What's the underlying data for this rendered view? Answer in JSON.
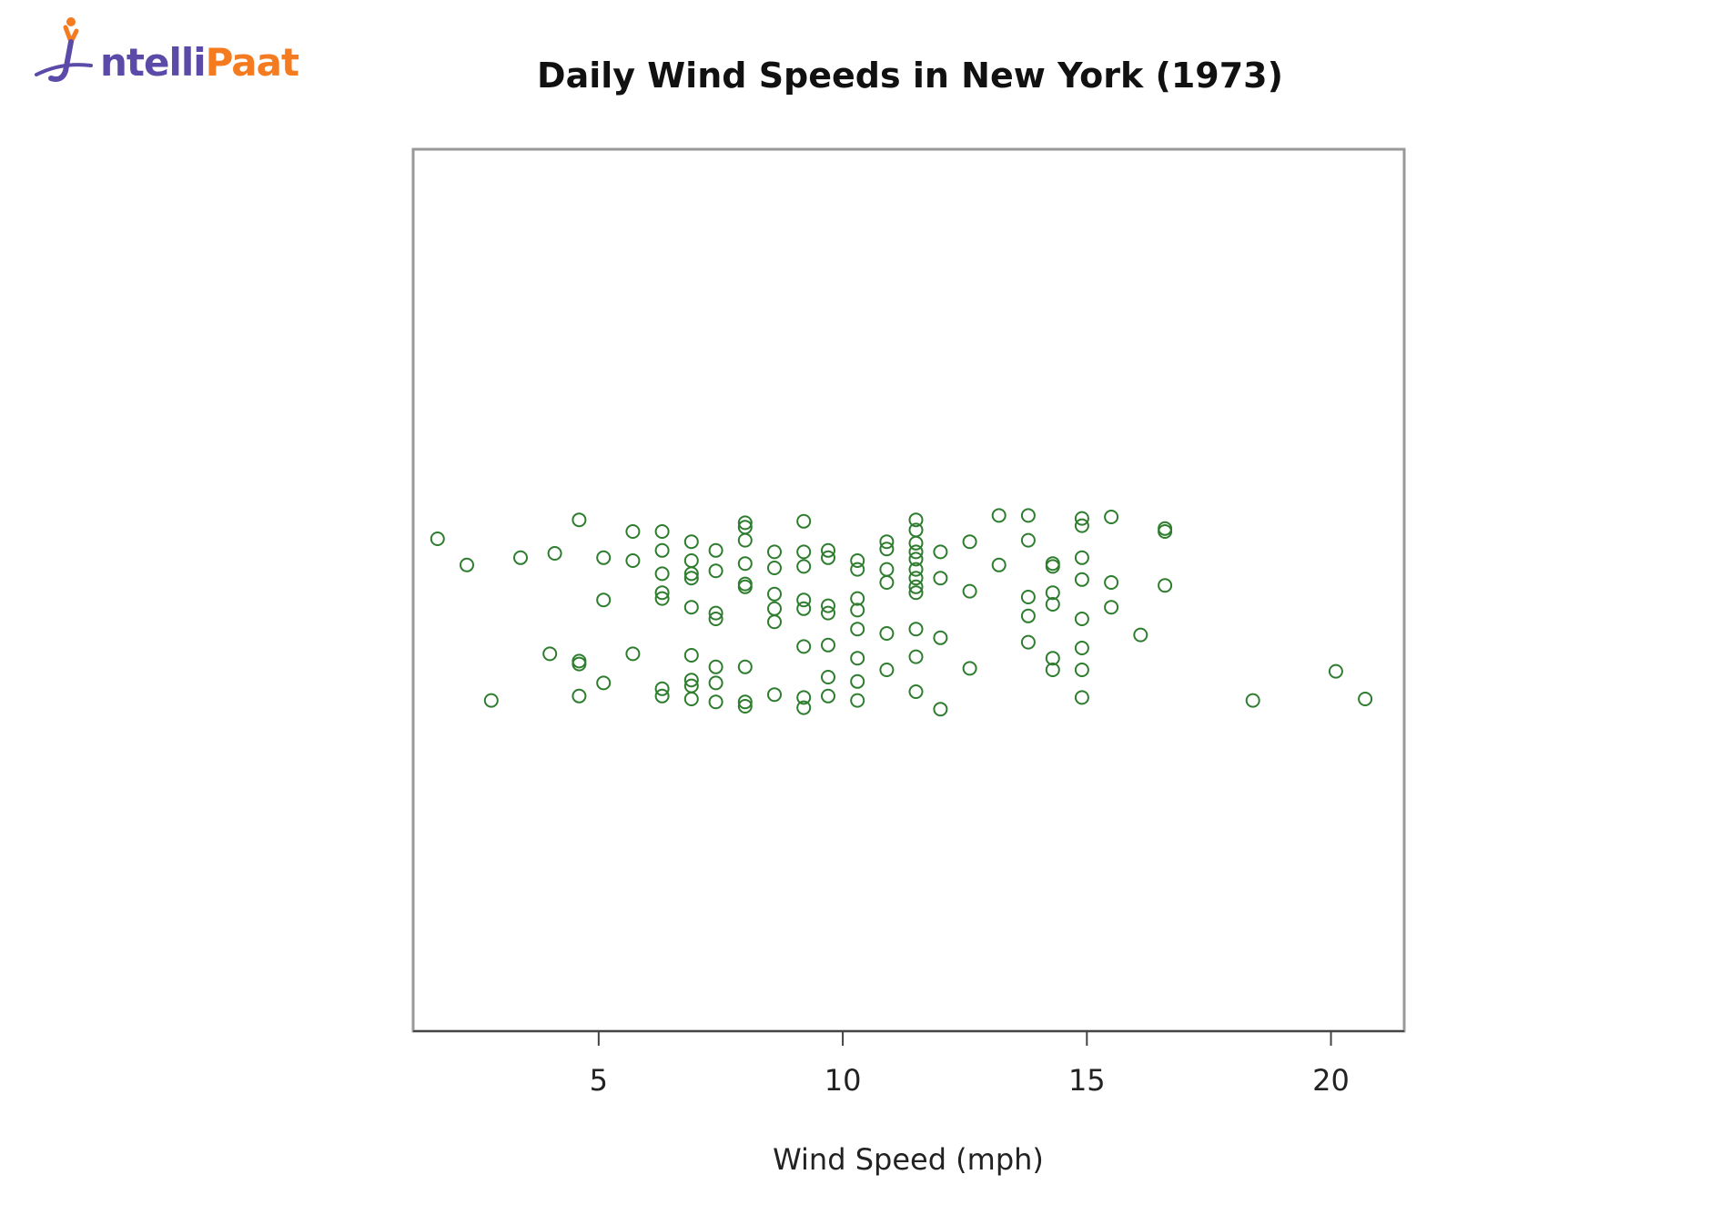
{
  "logo": {
    "part1": "ntelli",
    "part2": "Paat"
  },
  "chart_data": {
    "type": "scatter",
    "title": "Daily Wind Speeds in New York (1973)",
    "xlabel": "Wind Speed (mph)",
    "ylabel": "",
    "xlim": [
      1.2,
      21.5
    ],
    "xticks": [
      5,
      10,
      15,
      20
    ],
    "xtick_labels": [
      "5",
      "10",
      "15",
      "20"
    ],
    "jitter_range": [
      -1,
      1
    ],
    "yaxis_shown": false,
    "grid": false,
    "marker": "open-circle",
    "color": "#2e7d2e",
    "points": [
      {
        "x": 1.7,
        "y": 0.35
      },
      {
        "x": 2.3,
        "y": 0.17
      },
      {
        "x": 2.8,
        "y": -0.76
      },
      {
        "x": 3.4,
        "y": 0.22
      },
      {
        "x": 4.0,
        "y": -0.44
      },
      {
        "x": 4.1,
        "y": 0.25
      },
      {
        "x": 4.6,
        "y": 0.48
      },
      {
        "x": 4.6,
        "y": -0.49
      },
      {
        "x": 4.6,
        "y": -0.73
      },
      {
        "x": 4.6,
        "y": -0.51
      },
      {
        "x": 5.1,
        "y": 0.22
      },
      {
        "x": 5.1,
        "y": -0.07
      },
      {
        "x": 5.1,
        "y": -0.64
      },
      {
        "x": 5.7,
        "y": 0.4
      },
      {
        "x": 5.7,
        "y": 0.2
      },
      {
        "x": 5.7,
        "y": -0.44
      },
      {
        "x": 6.3,
        "y": 0.4
      },
      {
        "x": 6.3,
        "y": 0.27
      },
      {
        "x": 6.3,
        "y": 0.11
      },
      {
        "x": 6.3,
        "y": -0.02
      },
      {
        "x": 6.3,
        "y": -0.06
      },
      {
        "x": 6.3,
        "y": -0.68
      },
      {
        "x": 6.3,
        "y": -0.73
      },
      {
        "x": 6.9,
        "y": 0.33
      },
      {
        "x": 6.9,
        "y": 0.2
      },
      {
        "x": 6.9,
        "y": 0.11
      },
      {
        "x": 6.9,
        "y": 0.08
      },
      {
        "x": 6.9,
        "y": -0.12
      },
      {
        "x": 6.9,
        "y": -0.45
      },
      {
        "x": 6.9,
        "y": -0.62
      },
      {
        "x": 6.9,
        "y": -0.66
      },
      {
        "x": 6.9,
        "y": -0.75
      },
      {
        "x": 7.4,
        "y": 0.27
      },
      {
        "x": 7.4,
        "y": 0.13
      },
      {
        "x": 7.4,
        "y": -0.16
      },
      {
        "x": 7.4,
        "y": -0.2
      },
      {
        "x": 7.4,
        "y": -0.53
      },
      {
        "x": 7.4,
        "y": -0.64
      },
      {
        "x": 7.4,
        "y": -0.77
      },
      {
        "x": 8.0,
        "y": 0.46
      },
      {
        "x": 8.0,
        "y": 0.43
      },
      {
        "x": 8.0,
        "y": 0.34
      },
      {
        "x": 8.0,
        "y": 0.18
      },
      {
        "x": 8.0,
        "y": 0.04
      },
      {
        "x": 8.0,
        "y": 0.02
      },
      {
        "x": 8.0,
        "y": -0.53
      },
      {
        "x": 8.0,
        "y": -0.77
      },
      {
        "x": 8.0,
        "y": -0.8
      },
      {
        "x": 8.6,
        "y": 0.26
      },
      {
        "x": 8.6,
        "y": 0.15
      },
      {
        "x": 8.6,
        "y": -0.03
      },
      {
        "x": 8.6,
        "y": -0.13
      },
      {
        "x": 8.6,
        "y": -0.22
      },
      {
        "x": 8.6,
        "y": -0.72
      },
      {
        "x": 9.2,
        "y": 0.47
      },
      {
        "x": 9.2,
        "y": 0.26
      },
      {
        "x": 9.2,
        "y": 0.16
      },
      {
        "x": 9.2,
        "y": -0.07
      },
      {
        "x": 9.2,
        "y": -0.13
      },
      {
        "x": 9.2,
        "y": -0.39
      },
      {
        "x": 9.2,
        "y": -0.74
      },
      {
        "x": 9.2,
        "y": -0.81
      },
      {
        "x": 9.7,
        "y": 0.27
      },
      {
        "x": 9.7,
        "y": 0.22
      },
      {
        "x": 9.7,
        "y": -0.11
      },
      {
        "x": 9.7,
        "y": -0.16
      },
      {
        "x": 9.7,
        "y": -0.38
      },
      {
        "x": 9.7,
        "y": -0.6
      },
      {
        "x": 9.7,
        "y": -0.73
      },
      {
        "x": 10.3,
        "y": 0.2
      },
      {
        "x": 10.3,
        "y": 0.14
      },
      {
        "x": 10.3,
        "y": -0.06
      },
      {
        "x": 10.3,
        "y": -0.14
      },
      {
        "x": 10.3,
        "y": -0.27
      },
      {
        "x": 10.3,
        "y": -0.47
      },
      {
        "x": 10.3,
        "y": -0.63
      },
      {
        "x": 10.3,
        "y": -0.76
      },
      {
        "x": 10.9,
        "y": 0.33
      },
      {
        "x": 10.9,
        "y": 0.28
      },
      {
        "x": 10.9,
        "y": 0.14
      },
      {
        "x": 10.9,
        "y": 0.05
      },
      {
        "x": 10.9,
        "y": -0.3
      },
      {
        "x": 10.9,
        "y": -0.55
      },
      {
        "x": 11.5,
        "y": 0.48
      },
      {
        "x": 11.5,
        "y": 0.41
      },
      {
        "x": 11.5,
        "y": 0.32
      },
      {
        "x": 11.5,
        "y": 0.26
      },
      {
        "x": 11.5,
        "y": 0.21
      },
      {
        "x": 11.5,
        "y": 0.14
      },
      {
        "x": 11.5,
        "y": 0.08
      },
      {
        "x": 11.5,
        "y": 0.02
      },
      {
        "x": 11.5,
        "y": -0.02
      },
      {
        "x": 11.5,
        "y": -0.27
      },
      {
        "x": 11.5,
        "y": -0.46
      },
      {
        "x": 11.5,
        "y": -0.7
      },
      {
        "x": 12.0,
        "y": 0.26
      },
      {
        "x": 12.0,
        "y": 0.08
      },
      {
        "x": 12.0,
        "y": -0.33
      },
      {
        "x": 12.0,
        "y": -0.82
      },
      {
        "x": 12.6,
        "y": 0.33
      },
      {
        "x": 12.6,
        "y": -0.01
      },
      {
        "x": 12.6,
        "y": -0.54
      },
      {
        "x": 13.2,
        "y": 0.51
      },
      {
        "x": 13.2,
        "y": 0.17
      },
      {
        "x": 13.8,
        "y": 0.51
      },
      {
        "x": 13.8,
        "y": 0.34
      },
      {
        "x": 13.8,
        "y": -0.05
      },
      {
        "x": 13.8,
        "y": -0.18
      },
      {
        "x": 13.8,
        "y": -0.36
      },
      {
        "x": 14.3,
        "y": 0.18
      },
      {
        "x": 14.3,
        "y": 0.16
      },
      {
        "x": 14.3,
        "y": -0.02
      },
      {
        "x": 14.3,
        "y": -0.1
      },
      {
        "x": 14.3,
        "y": -0.47
      },
      {
        "x": 14.3,
        "y": -0.55
      },
      {
        "x": 14.9,
        "y": 0.49
      },
      {
        "x": 14.9,
        "y": 0.44
      },
      {
        "x": 14.9,
        "y": 0.22
      },
      {
        "x": 14.9,
        "y": 0.07
      },
      {
        "x": 14.9,
        "y": -0.2
      },
      {
        "x": 14.9,
        "y": -0.4
      },
      {
        "x": 14.9,
        "y": -0.55
      },
      {
        "x": 14.9,
        "y": -0.74
      },
      {
        "x": 15.5,
        "y": 0.5
      },
      {
        "x": 15.5,
        "y": 0.05
      },
      {
        "x": 15.5,
        "y": -0.12
      },
      {
        "x": 16.1,
        "y": -0.31
      },
      {
        "x": 16.6,
        "y": 0.42
      },
      {
        "x": 16.6,
        "y": 0.4
      },
      {
        "x": 16.6,
        "y": 0.03
      },
      {
        "x": 18.4,
        "y": -0.76
      },
      {
        "x": 20.1,
        "y": -0.56
      },
      {
        "x": 20.7,
        "y": -0.75
      }
    ]
  }
}
